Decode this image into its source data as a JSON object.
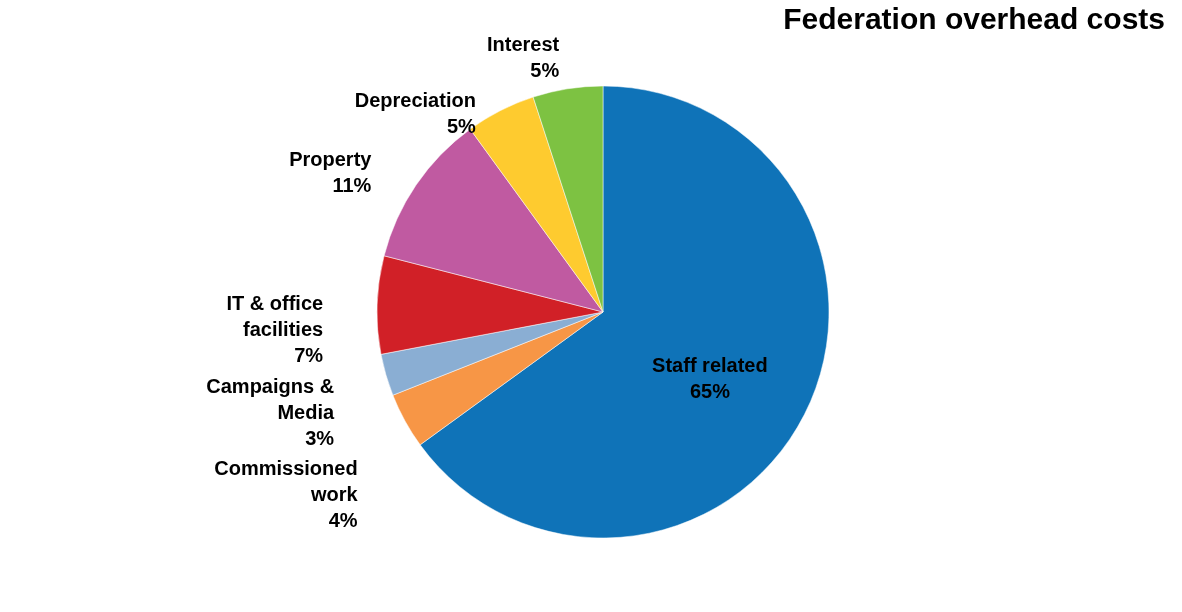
{
  "chart_data": {
    "type": "pie",
    "title": "Federation  overhead costs",
    "categories": [
      "Staff related",
      "Commissioned work",
      "Campaigns & Media",
      "IT & office facilities",
      "Property",
      "Depreciation",
      "Interest"
    ],
    "values": [
      65,
      4,
      3,
      7,
      11,
      5,
      5
    ],
    "value_labels": [
      "65%",
      "4%",
      "3%",
      "7%",
      "11%",
      "5%",
      "5%"
    ],
    "colors": [
      "#0f73b8",
      "#f79646",
      "#8aaed3",
      "#d12027",
      "#c05aa1",
      "#fecb2f",
      "#7dc242"
    ],
    "legend": false
  }
}
